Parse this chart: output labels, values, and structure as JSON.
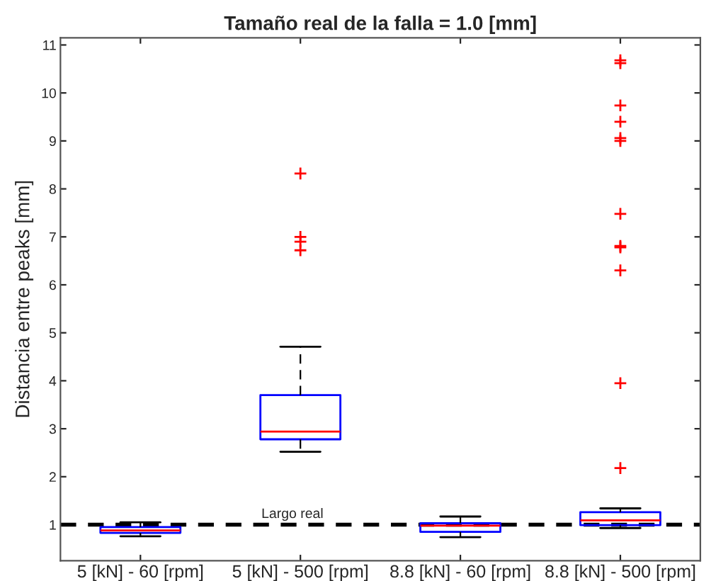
{
  "chart_data": {
    "type": "box",
    "title": "Tamaño real de la falla = 1.0 [mm]",
    "ylabel": "Distancia entre peaks [mm]",
    "categories": [
      "5 [kN] - 60 [rpm]",
      "5 [kN] - 500 [rpm]",
      "8.8 [kN] - 60 [rpm]",
      "8.8 [kN] - 500 [rpm]"
    ],
    "boxes": [
      {
        "low": 0.76,
        "q1": 0.83,
        "median": 0.88,
        "q3": 0.95,
        "high": 1.05
      },
      {
        "low": 2.52,
        "q1": 2.78,
        "median": 2.94,
        "q3": 3.7,
        "high": 4.71,
        "outliers": [
          8.32,
          7.0,
          6.9,
          6.72
        ]
      },
      {
        "low": 0.74,
        "q1": 0.85,
        "median": 0.98,
        "q3": 1.03,
        "high": 1.17
      },
      {
        "low": 0.93,
        "q1": 0.99,
        "median": 1.09,
        "q3": 1.26,
        "high": 1.34,
        "outliers": [
          10.68,
          10.62,
          9.74,
          9.4,
          9.06,
          9.0,
          7.48,
          6.81,
          6.78,
          6.3,
          3.95,
          2.18
        ]
      }
    ],
    "color": "#0000ff",
    "ylim": [
      0.25,
      11.15
    ],
    "yticks": [
      1,
      2,
      3,
      4,
      5,
      6,
      7,
      8,
      9,
      10,
      11
    ],
    "grid": false,
    "legend": false,
    "ref_lines": [
      {
        "axis": "y",
        "value": 1,
        "label": "Largo real",
        "color": "#000000",
        "line_style": "dashed"
      }
    ]
  }
}
